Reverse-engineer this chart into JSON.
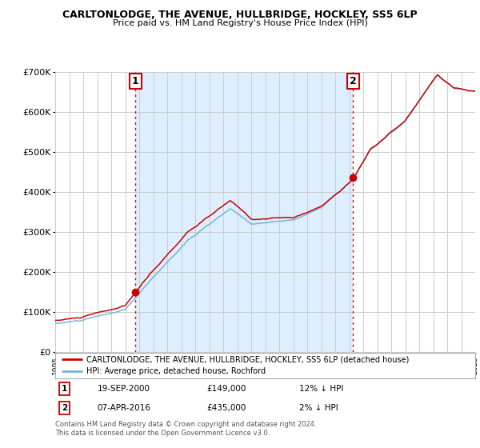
{
  "title": "CARLTONLODGE, THE AVENUE, HULLBRIDGE, HOCKLEY, SS5 6LP",
  "subtitle": "Price paid vs. HM Land Registry's House Price Index (HPI)",
  "legend_entry1": "CARLTONLODGE, THE AVENUE, HULLBRIDGE, HOCKLEY, SS5 6LP (detached house)",
  "legend_entry2": "HPI: Average price, detached house, Rochford",
  "annotation1_label": "1",
  "annotation1_date": "19-SEP-2000",
  "annotation1_price": "£149,000",
  "annotation1_hpi": "12% ↓ HPI",
  "annotation2_label": "2",
  "annotation2_date": "07-APR-2016",
  "annotation2_price": "£435,000",
  "annotation2_hpi": "2% ↓ HPI",
  "footnote": "Contains HM Land Registry data © Crown copyright and database right 2024.\nThis data is licensed under the Open Government Licence v3.0.",
  "hpi_color": "#7ab4d8",
  "property_color": "#cc0000",
  "shade_color": "#ddeeff",
  "annotation_vline_color": "#cc0000",
  "background_color": "#ffffff",
  "grid_color": "#cccccc",
  "ylim": [
    0,
    700000
  ],
  "yticks": [
    0,
    100000,
    200000,
    300000,
    400000,
    500000,
    600000,
    700000
  ],
  "year_start": 1995,
  "year_end": 2025,
  "sale1_year": 2000.72,
  "sale1_price": 149000,
  "sale2_year": 2016.27,
  "sale2_price": 435000
}
